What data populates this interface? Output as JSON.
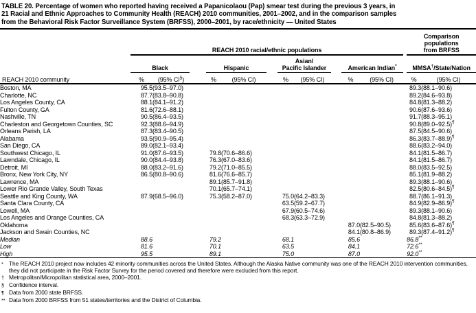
{
  "title": {
    "line1": "TABLE 20. Percentage of women who reported having received a Papanicolaou (Pap) smear test during the previous 3 years, in",
    "line2": "21 Racial and Ethnic Approaches to Community Health (REACH) 2010 communities, 2001–2002, and in the comparison samples",
    "line3": "from the Behavioral Risk Factor Surveillance System (BRFSS), 2000–2001, by race/ethnicity — United States"
  },
  "header": {
    "reach_span": "REACH 2010 racial/ethnic populations",
    "comparison_lines": [
      "Comparison",
      "populations",
      "from BRFSS"
    ],
    "community": "REACH 2010 community",
    "groups": {
      "black": "Black",
      "hispanic": "Hispanic",
      "asian_line1": "Asian/",
      "asian_line2": "Pacific Islander",
      "american_indian": "American Indian",
      "american_indian_sup": "*",
      "mmsa_pre": "MMSA",
      "mmsa_sup": "†",
      "mmsa_post": "/State/Nation"
    },
    "sub": {
      "pct": "%",
      "ci": "(95% CI)",
      "ci_black_pre": "(95% CI",
      "ci_black_sup": "§",
      "ci_black_post": ")"
    }
  },
  "table": {
    "rows": [
      {
        "community": "Boston, MA",
        "italic": false,
        "cells": [
          "95.5",
          "(93.5–97.0)",
          "",
          "",
          "",
          "",
          "",
          "",
          "89.3",
          "(88.1–90.6)"
        ]
      },
      {
        "community": "Charlotte, NC",
        "italic": false,
        "cells": [
          "87.7",
          "(83.8–90.8)",
          "",
          "",
          "",
          "",
          "",
          "",
          "89.2",
          "(84.6–93.8)"
        ]
      },
      {
        "community": "Los Angeles County, CA",
        "italic": false,
        "cells": [
          "88.1",
          "(84.1–91.2)",
          "",
          "",
          "",
          "",
          "",
          "",
          "84.8",
          "(81.3–88.2)"
        ]
      },
      {
        "community": "Fulton County, GA",
        "italic": false,
        "cells": [
          "81.6",
          "(72.6–88.1)",
          "",
          "",
          "",
          "",
          "",
          "",
          "90.6",
          "(87.6–93.6)"
        ]
      },
      {
        "community": "Nashville, TN",
        "italic": false,
        "cells": [
          "90.5",
          "(86.4–93.5)",
          "",
          "",
          "",
          "",
          "",
          "",
          "91.7",
          "(88.3–95.1)"
        ]
      },
      {
        "community": "Charleston and Georgetown Counties, SC",
        "italic": false,
        "cells": [
          "92.3",
          "(88.6–94.9)",
          "",
          "",
          "",
          "",
          "",
          "",
          "90.8",
          "(89.0–92.5)¶"
        ]
      },
      {
        "community": "Orleans Parish, LA",
        "italic": false,
        "cells": [
          "87.3",
          "(83.4–90.5)",
          "",
          "",
          "",
          "",
          "",
          "",
          "87.5",
          "(84.5–90.6)"
        ]
      },
      {
        "community": "Alabama",
        "italic": false,
        "cells": [
          "93.5",
          "(90.9–95.4)",
          "",
          "",
          "",
          "",
          "",
          "",
          "86.3",
          "(83.7–88.9)¶"
        ]
      },
      {
        "community": "San Diego, CA",
        "italic": false,
        "cells": [
          "89.0",
          "(82.1–93.4)",
          "",
          "",
          "",
          "",
          "",
          "",
          "88.6",
          "(83.2–94.0)"
        ]
      },
      {
        "community": "Southwest Chicago, IL",
        "italic": false,
        "cells": [
          "91.0",
          "(87.6–93.5)",
          "79.8",
          "(70.6–86.6)",
          "",
          "",
          "",
          "",
          "84.1",
          "(81.5–86.7)"
        ]
      },
      {
        "community": "Lawndale, Chicago, IL",
        "italic": false,
        "cells": [
          "90.0",
          "(84.4–93.8)",
          "76.3",
          "(67.0–83.6)",
          "",
          "",
          "",
          "",
          "84.1",
          "(81.5–86.7)"
        ]
      },
      {
        "community": "Detroit, MI",
        "italic": false,
        "cells": [
          "88.0",
          "(83.2–91.6)",
          "79.2",
          "(71.0–85.5)",
          "",
          "",
          "",
          "",
          "88.0",
          "(83.5–92.5)"
        ]
      },
      {
        "community": "Bronx, New York City, NY",
        "italic": false,
        "cells": [
          "86.5",
          "(80.8–90.6)",
          "81.6",
          "(76.6–85.7)",
          "",
          "",
          "",
          "",
          "85.1",
          "(81.9–88.2)"
        ]
      },
      {
        "community": "Lawrence, MA",
        "italic": false,
        "cells": [
          "",
          "",
          "89.1",
          "(85.7–91.8)",
          "",
          "",
          "",
          "",
          "89.3",
          "(88.1–90.6)"
        ]
      },
      {
        "community": "Lower Rio Grande Valley, South Texas",
        "italic": false,
        "cells": [
          "",
          "",
          "70.1",
          "(65.7–74.1)",
          "",
          "",
          "",
          "",
          "82.5",
          "(80.6–84.5)¶"
        ]
      },
      {
        "community": "Seattle and King County, WA",
        "italic": false,
        "cells": [
          "87.9",
          "(68.5–96.0)",
          "75.3",
          "(58.2–87.0)",
          "75.0",
          "(64.2–83.3)",
          "",
          "",
          "88.7",
          "(86.1–91.3)"
        ]
      },
      {
        "community": "Santa Clara County, CA",
        "italic": false,
        "cells": [
          "",
          "",
          "",
          "",
          "63.5",
          "(59.2–67.7)",
          "",
          "",
          "84.9",
          "(82.9–86.9)¶"
        ]
      },
      {
        "community": "Lowell, MA",
        "italic": false,
        "cells": [
          "",
          "",
          "",
          "",
          "67.9",
          "(60.5–74.6)",
          "",
          "",
          "89.3",
          "(88.1–90.6)"
        ]
      },
      {
        "community": "Los Angeles and Orange Counties, CA",
        "italic": false,
        "cells": [
          "",
          "",
          "",
          "",
          "68.3",
          "(63.3–72.9)",
          "",
          "",
          "84.8",
          "(81.3–88.2)"
        ]
      },
      {
        "community": "Oklahoma",
        "italic": false,
        "cells": [
          "",
          "",
          "",
          "",
          "",
          "",
          "87.0",
          "(82.5–90.5)",
          "85.6",
          "(83.6–87.6)¶"
        ]
      },
      {
        "community": "Jackson and Swain Counties, NC",
        "italic": false,
        "cells": [
          "",
          "",
          "",
          "",
          "",
          "",
          "84.1",
          "(80.8–86.9)",
          "89.3",
          "(87.4–91.2)¶"
        ]
      },
      {
        "community": "Median",
        "italic": true,
        "cells": [
          "88.6",
          "",
          "79.2",
          "",
          "68.1",
          "",
          "85.6",
          "",
          "86.8**",
          ""
        ]
      },
      {
        "community": "Low",
        "italic": true,
        "cells": [
          "81.6",
          "",
          "70.1",
          "",
          "63.5",
          "",
          "84.1",
          "",
          "72.6**",
          ""
        ]
      },
      {
        "community": "High",
        "italic": true,
        "cells": [
          "95.5",
          "",
          "89.1",
          "",
          "75.0",
          "",
          "87.0",
          "",
          "92.0**",
          ""
        ]
      }
    ]
  },
  "footnotes": [
    {
      "marker": "*",
      "text": "The REACH 2010 project now includes 42 minority communities across the United States. Although the Alaska Native community was one of the REACH 2010 intervention communities, they did not participate in the Risk Factor Survey for the period covered and therefore were excluded from this report."
    },
    {
      "marker": "†",
      "text": "Metropolitan/Micropolitan statistical area, 2000–2001."
    },
    {
      "marker": "§",
      "text": "Confidence interval."
    },
    {
      "marker": "¶",
      "text": "Data from 2000 state BRFSS."
    },
    {
      "marker": "**",
      "text": "Data from 2000 BRFSS from 51 states/territories and the District of Columbia."
    }
  ]
}
